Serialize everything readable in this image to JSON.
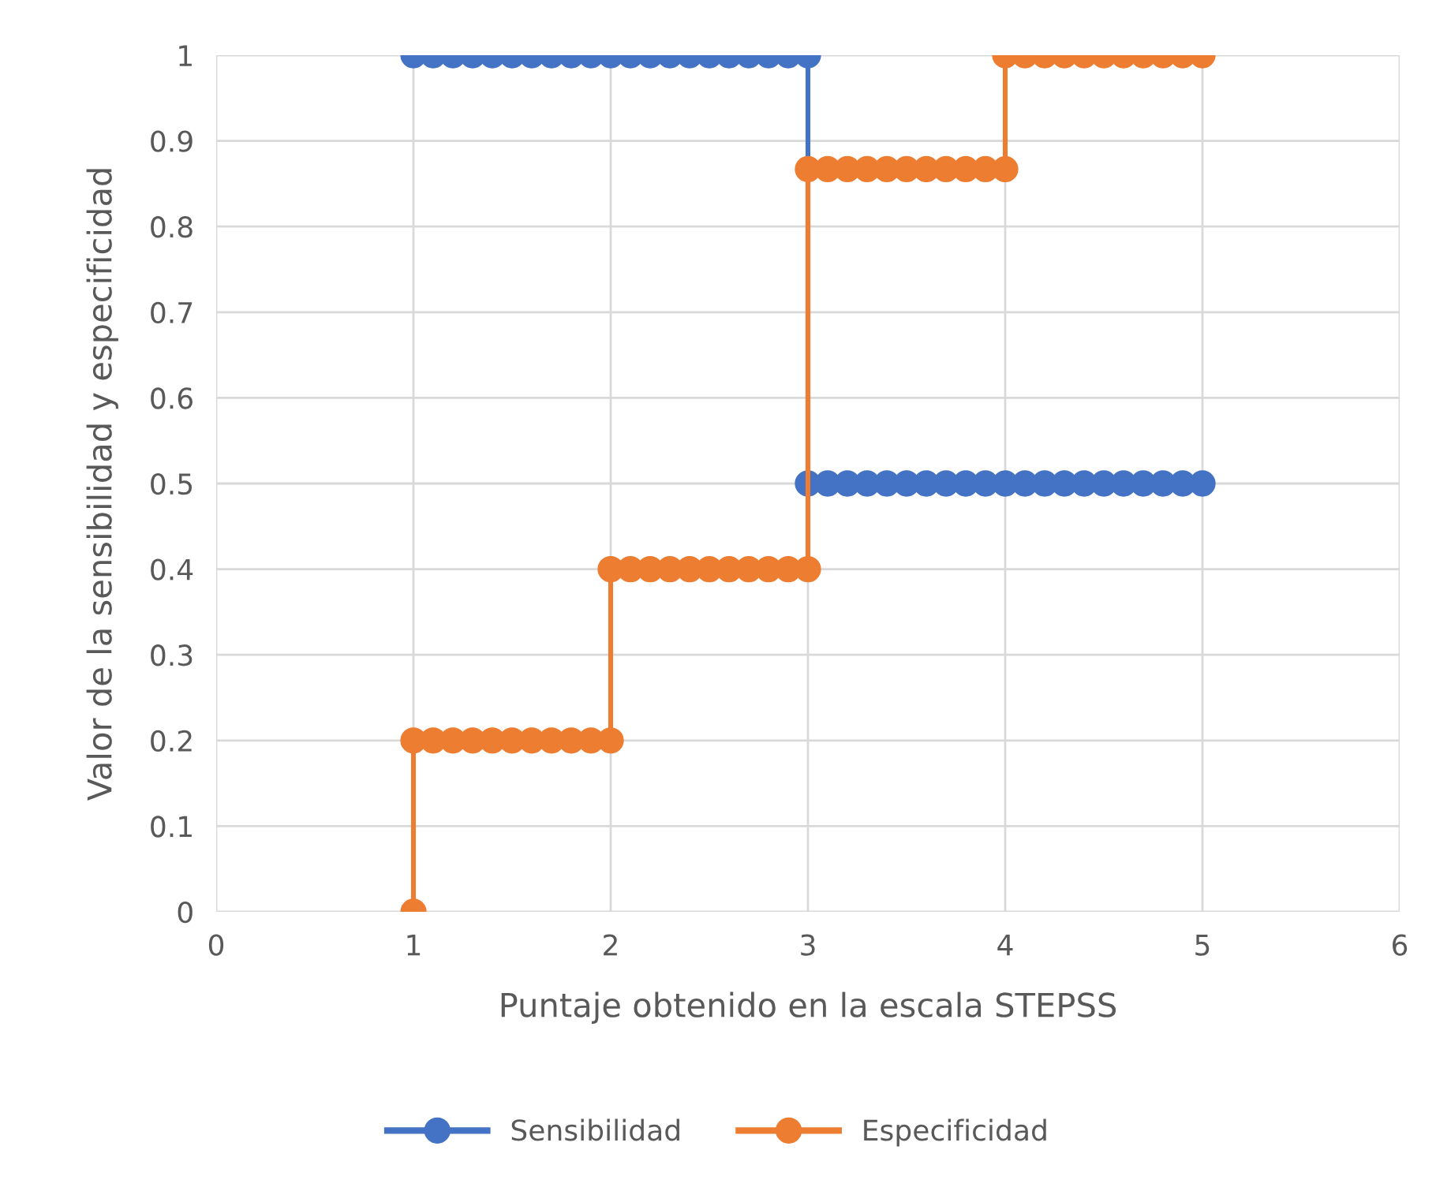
{
  "chart_data": {
    "type": "line",
    "xlabel": "Puntaje obtenido en la escala STEPSS",
    "ylabel": "Valor de la sensibilidad y especificidad",
    "xlim": [
      0,
      6
    ],
    "xticks": [
      0,
      1,
      2,
      3,
      4,
      5,
      6
    ],
    "ylim": [
      0,
      1
    ],
    "yticks": [
      0,
      0.1,
      0.2,
      0.3,
      0.4,
      0.5,
      0.6,
      0.7,
      0.8,
      0.9,
      1
    ],
    "grid": true,
    "legend": "bottom",
    "marker": "circle",
    "line_style": "solid",
    "series": [
      {
        "name": "Sensibilidad",
        "color": "#4472c4",
        "x": [
          1,
          1.1,
          1.2,
          1.3,
          1.4,
          1.5,
          1.6,
          1.7,
          1.8,
          1.9,
          2,
          2.1,
          2.2,
          2.3,
          2.4,
          2.5,
          2.6,
          2.7,
          2.8,
          2.9,
          3,
          3,
          3.1,
          3.2,
          3.3,
          3.4,
          3.5,
          3.6,
          3.7,
          3.8,
          3.9,
          4,
          4.1,
          4.2,
          4.3,
          4.4,
          4.5,
          4.6,
          4.7,
          4.8,
          4.9,
          5
        ],
        "values": [
          1,
          1,
          1,
          1,
          1,
          1,
          1,
          1,
          1,
          1,
          1,
          1,
          1,
          1,
          1,
          1,
          1,
          1,
          1,
          1,
          1,
          0.5,
          0.5,
          0.5,
          0.5,
          0.5,
          0.5,
          0.5,
          0.5,
          0.5,
          0.5,
          0.5,
          0.5,
          0.5,
          0.5,
          0.5,
          0.5,
          0.5,
          0.5,
          0.5,
          0.5,
          0.5
        ]
      },
      {
        "name": "Especificidad",
        "color": "#ed7d31",
        "x": [
          1,
          1,
          1.1,
          1.2,
          1.3,
          1.4,
          1.5,
          1.6,
          1.7,
          1.8,
          1.9,
          2,
          2,
          2.1,
          2.2,
          2.3,
          2.4,
          2.5,
          2.6,
          2.7,
          2.8,
          2.9,
          3,
          3,
          3.1,
          3.2,
          3.3,
          3.4,
          3.5,
          3.6,
          3.7,
          3.8,
          3.9,
          4,
          4,
          4.1,
          4.2,
          4.3,
          4.4,
          4.5,
          4.6,
          4.7,
          4.8,
          4.9,
          5
        ],
        "values": [
          0,
          0.2,
          0.2,
          0.2,
          0.2,
          0.2,
          0.2,
          0.2,
          0.2,
          0.2,
          0.2,
          0.2,
          0.4,
          0.4,
          0.4,
          0.4,
          0.4,
          0.4,
          0.4,
          0.4,
          0.4,
          0.4,
          0.4,
          0.867,
          0.867,
          0.867,
          0.867,
          0.867,
          0.867,
          0.867,
          0.867,
          0.867,
          0.867,
          0.867,
          1,
          1,
          1,
          1,
          1,
          1,
          1,
          1,
          1,
          1,
          1
        ]
      }
    ]
  }
}
